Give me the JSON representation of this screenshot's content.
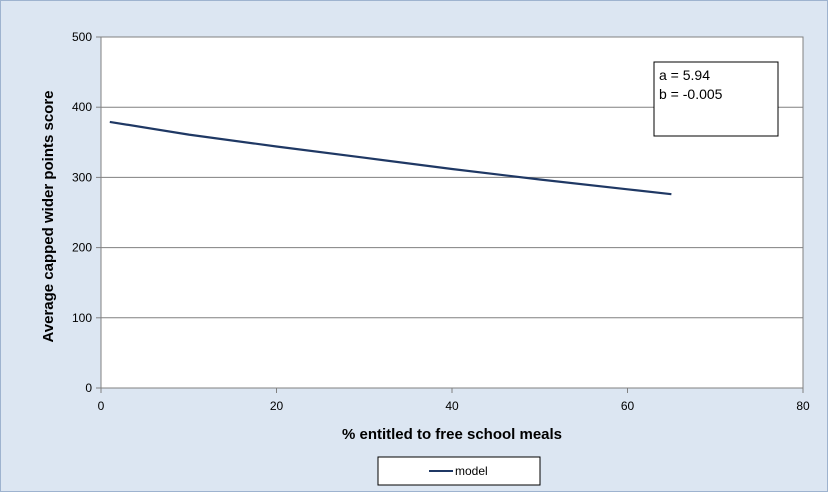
{
  "chart_data": {
    "type": "line",
    "title": "",
    "xlabel": "% entitled to free school meals",
    "ylabel": "Average capped wider points score",
    "xlim": [
      0,
      80
    ],
    "ylim": [
      0,
      500
    ],
    "xticks": [
      0,
      20,
      40,
      60,
      80
    ],
    "yticks": [
      0,
      100,
      200,
      300,
      400,
      500
    ],
    "grid": "horizontal",
    "legend_position": "bottom",
    "series": [
      {
        "name": "model",
        "color": "#1f3864",
        "x": [
          1,
          10,
          20,
          30,
          40,
          50,
          60,
          65
        ],
        "y": [
          379,
          361,
          344,
          328,
          312,
          297,
          283,
          276
        ]
      }
    ],
    "annotation": {
      "lines": [
        "a = 5.94",
        "b = -0.005"
      ]
    },
    "colors": {
      "chart_background": "#dce6f2",
      "plot_background": "#ffffff",
      "gridline": "#808080"
    }
  }
}
